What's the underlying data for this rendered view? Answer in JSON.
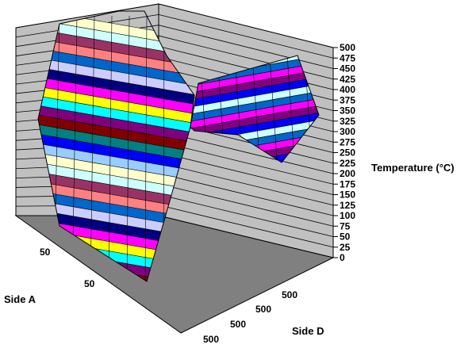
{
  "chart_data": {
    "type": "surface3d",
    "zlabel": "Temperature (°C)",
    "xlabel": "Side A",
    "ylabel": "Side D",
    "zlim": [
      0,
      500
    ],
    "z_ticks": [
      "0",
      "25",
      "50",
      "75",
      "100",
      "125",
      "150",
      "175",
      "200",
      "225",
      "250",
      "275",
      "300",
      "325",
      "350",
      "375",
      "400",
      "425",
      "450",
      "475",
      "500"
    ],
    "side_a_ticks": [
      "50",
      "50"
    ],
    "side_d_ticks": [
      "500",
      "500",
      "500",
      "500"
    ],
    "grid": true,
    "colors": {
      "floor": "#808080",
      "back_walls": "#c0c0c0",
      "gridlines": "#000000",
      "bands": [
        "#ffffcc",
        "#ccffff",
        "#993366",
        "#ff8080",
        "#0066cc",
        "#ccccff",
        "#000080",
        "#ff00ff",
        "#ffff00",
        "#00ffff",
        "#800080",
        "#800000",
        "#008080",
        "#0000ff",
        "#99ccff"
      ]
    },
    "surface_description_values": {
      "side_a_high_edge_temp": 500,
      "center_trough_temp": 0,
      "side_d_high_edge_temp": 480
    }
  }
}
